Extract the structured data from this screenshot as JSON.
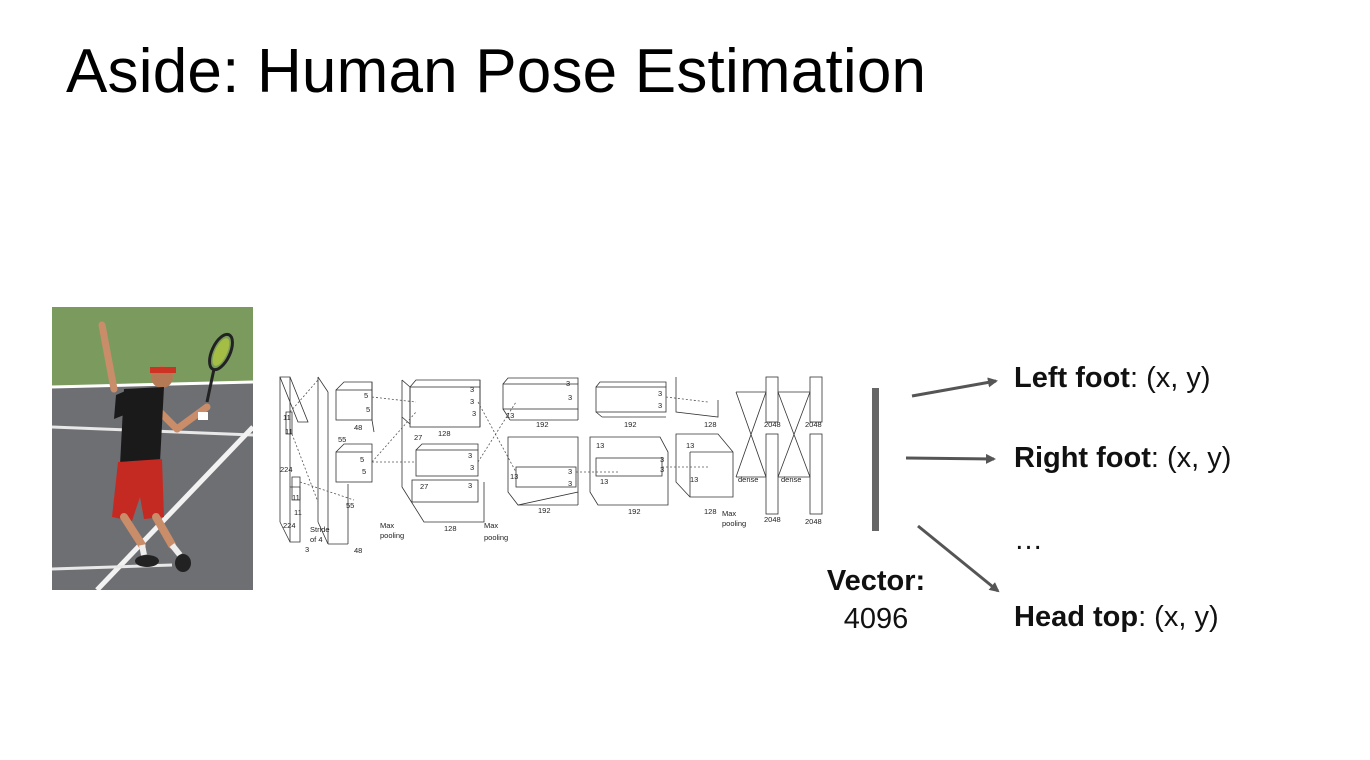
{
  "slide": {
    "title": "Aside: Human Pose Estimation"
  },
  "network": {
    "labels": {
      "in_11a": "11",
      "in_11b": "11",
      "in_224a": "224",
      "in_224b": "224",
      "in_11c": "11",
      "in_11d": "11",
      "in_3": "3",
      "stride": "Stride",
      "of4": "of 4",
      "c1_5a": "5",
      "c1_5b": "5",
      "c1_55a": "55",
      "c1_48a": "48",
      "c1_5c": "5",
      "c1_5d": "5",
      "c1_55b": "55",
      "c1_48b": "48",
      "maxpool1a": "Max",
      "maxpool1b": "pooling",
      "c2_3a": "3",
      "c2_3b": "3",
      "c2_3c": "3",
      "c2_27a": "27",
      "c2_128a": "128",
      "c2_3d": "3",
      "c2_3e": "3",
      "c2_3f": "3",
      "c2_27b": "27",
      "c2_128b": "128",
      "maxpool2a": "Max",
      "maxpool2b": "pooling",
      "c3_3a": "3",
      "c3_3b": "3",
      "c3_13a": "13",
      "c3_192a": "192",
      "c3_3c": "3",
      "c3_3d": "3",
      "c3_13b": "13",
      "c3_192b": "192",
      "c4_3a": "3",
      "c4_3b": "3",
      "c4_192a": "192",
      "c4_13a": "13",
      "c4_3c": "3",
      "c4_3d": "3",
      "c4_13b": "13",
      "c4_192b": "192",
      "c5_128a": "128",
      "c5_13a": "13",
      "c5_13b": "13",
      "c5_128b": "128",
      "maxpool3a": "Max",
      "maxpool3b": "pooling",
      "fc_2048a": "2048",
      "fc_2048b": "2048",
      "fc_2048c": "2048",
      "fc_2048d": "2048",
      "dense1": "dense",
      "dense2": "dense"
    }
  },
  "vector": {
    "title": "Vector:",
    "value": "4096"
  },
  "outputs": [
    {
      "name": "Left foot",
      "coords": ": (x, y)"
    },
    {
      "name": "Right foot",
      "coords": ": (x, y)"
    },
    {
      "name": "Head top",
      "coords": ": (x, y)"
    }
  ],
  "ellipsis": "…",
  "colors": {
    "court_green": "#7b9b5e",
    "court_gray": "#6e6f73",
    "shirt": "#1a1a1a",
    "shorts": "#c42a22",
    "vector_bar": "#666666",
    "arrow": "#555555"
  }
}
